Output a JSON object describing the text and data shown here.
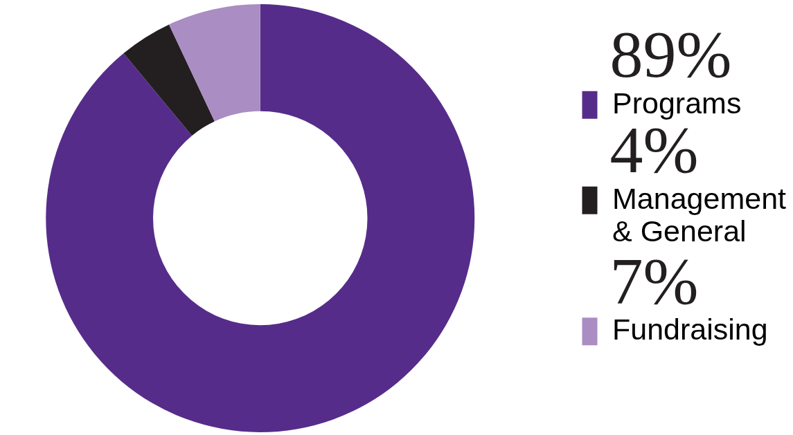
{
  "chart_data": {
    "type": "donut",
    "categories": [
      "Programs",
      "Management & General",
      "Fundraising"
    ],
    "values": [
      89,
      4,
      7
    ],
    "value_labels": [
      "89%",
      "4%",
      "7%"
    ],
    "colors": [
      "#562c8a",
      "#231f20",
      "#a98dc3"
    ],
    "data_labels": true,
    "legend": "right"
  }
}
